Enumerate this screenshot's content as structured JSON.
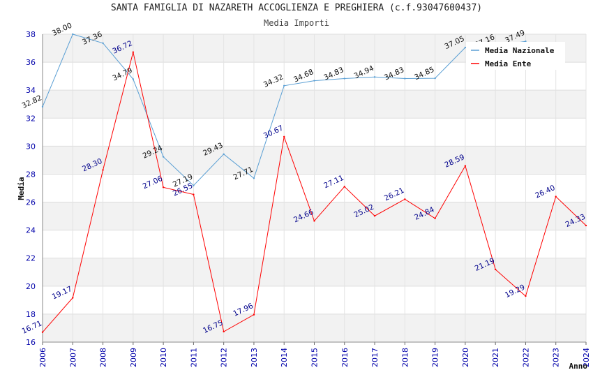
{
  "chart_data": {
    "type": "line",
    "title": "SANTA FAMIGLIA DI NAZARETH ACCOGLIENZA E PREGHIERA (c.f.93047600437)",
    "subtitle": "Media Importi",
    "xlabel": "Anno",
    "ylabel": "Media",
    "ylim": [
      16,
      38
    ],
    "yticks": [
      16,
      18,
      20,
      22,
      24,
      26,
      28,
      30,
      32,
      34,
      36,
      38
    ],
    "x": [
      "2006",
      "2007",
      "2008",
      "2009",
      "2010",
      "2011",
      "2012",
      "2013",
      "2014",
      "2015",
      "2016",
      "2017",
      "2018",
      "2019",
      "2020",
      "2021",
      "2022",
      "2023",
      "2024"
    ],
    "legend_position": "top-right",
    "series": [
      {
        "name": "Media Nazionale",
        "color": "#5a9fd4",
        "label_color": "#111111",
        "values": [
          32.82,
          38.0,
          37.36,
          34.79,
          29.24,
          27.19,
          29.43,
          27.71,
          34.32,
          34.68,
          34.83,
          34.94,
          34.83,
          34.85,
          37.05,
          37.16,
          37.49,
          null,
          null
        ],
        "labels": [
          "32.82",
          "38.00",
          "37.36",
          "34.79",
          "29.24",
          "27.19",
          "29.43",
          "27.71",
          "34.32",
          "34.68",
          "34.83",
          "34.94",
          "34.83",
          "34.85",
          "37.05",
          "37.16",
          "37.49",
          "",
          ""
        ]
      },
      {
        "name": "Media Ente",
        "color": "#ff0000",
        "label_color": "#00008b",
        "values": [
          16.71,
          19.17,
          28.3,
          36.72,
          27.06,
          26.55,
          16.75,
          17.96,
          30.67,
          24.66,
          27.11,
          25.02,
          26.21,
          24.84,
          28.59,
          21.19,
          19.29,
          26.4,
          24.33
        ],
        "labels": [
          "16.71",
          "19.17",
          "28.30",
          "36.72",
          "27.06",
          "26.55",
          "16.75",
          "17.96",
          "30.67",
          "24.66",
          "27.11",
          "25.02",
          "26.21",
          "24.84",
          "28.59",
          "21.19",
          "19.29",
          "26.40",
          "24.33"
        ]
      }
    ]
  }
}
